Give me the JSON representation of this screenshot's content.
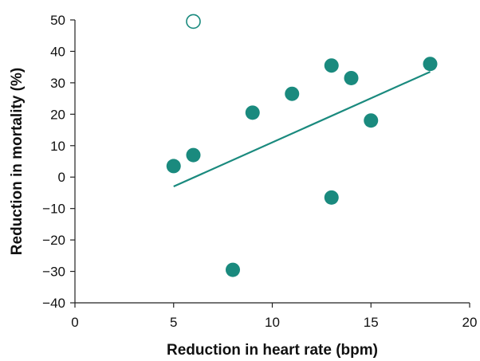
{
  "chart_data": {
    "type": "scatter",
    "xlabel": "Reduction in heart rate (bpm)",
    "ylabel": "Reduction in mortality (%)",
    "xlim": [
      0,
      20
    ],
    "ylim": [
      -40,
      50
    ],
    "xticks": [
      0,
      5,
      10,
      15,
      20
    ],
    "yticks": [
      -40,
      -30,
      -20,
      -10,
      0,
      10,
      20,
      30,
      40,
      50
    ],
    "xtick_labels": [
      "0",
      "5",
      "10",
      "15",
      "20"
    ],
    "ytick_labels": [
      "−40",
      "−30",
      "−20",
      "−10",
      "0",
      "10",
      "20",
      "30",
      "40",
      "50"
    ],
    "grid": false,
    "marker_color": "#1a8a7e",
    "series": [
      {
        "marker": "filled-circle",
        "points": [
          {
            "x": 5,
            "y": 3.5
          },
          {
            "x": 6,
            "y": 7
          },
          {
            "x": 8,
            "y": -29.5
          },
          {
            "x": 9,
            "y": 20.5
          },
          {
            "x": 11,
            "y": 26.5
          },
          {
            "x": 13,
            "y": 35.5
          },
          {
            "x": 13,
            "y": -6.5
          },
          {
            "x": 14,
            "y": 31.5
          },
          {
            "x": 15,
            "y": 18
          },
          {
            "x": 18,
            "y": 36
          }
        ]
      },
      {
        "marker": "open-circle",
        "points": [
          {
            "x": 6,
            "y": 49.5
          }
        ]
      }
    ],
    "trendline": {
      "x": [
        5,
        18
      ],
      "y": [
        -3,
        33.5
      ]
    }
  }
}
